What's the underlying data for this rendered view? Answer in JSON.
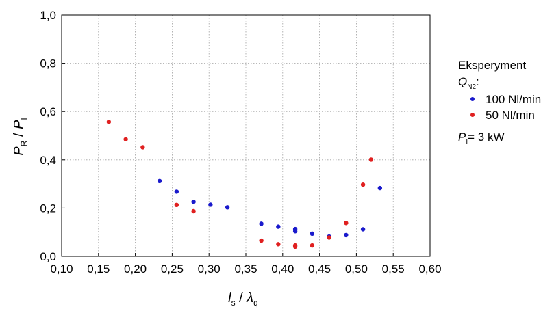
{
  "chart_data": {
    "type": "scatter",
    "x": {
      "min": 0.1,
      "max": 0.6,
      "ticks": [
        "0,10",
        "0,15",
        "0,20",
        "0,25",
        "0,30",
        "0,35",
        "0,40",
        "0,45",
        "0,50",
        "0,55",
        "0,60"
      ],
      "tick_values": [
        0.1,
        0.15,
        0.2,
        0.25,
        0.3,
        0.35,
        0.4,
        0.45,
        0.5,
        0.55,
        0.6
      ]
    },
    "y": {
      "min": 0.0,
      "max": 1.0,
      "ticks": [
        "0,0",
        "0,2",
        "0,4",
        "0,6",
        "0,8",
        "1,0"
      ],
      "tick_values": [
        0.0,
        0.2,
        0.4,
        0.6,
        0.8,
        1.0
      ]
    },
    "xlabel": {
      "main": "l",
      "sub": "s",
      "sep": " / ",
      "main2": "λ",
      "sub2": "q"
    },
    "ylabel": {
      "main": "P",
      "sub": "R",
      "sep": " / ",
      "main2": "P",
      "sub2": "I"
    },
    "grid": true,
    "legend": {
      "placement": "right",
      "title": "Eksperyment",
      "subtitle_main": "Q",
      "subtitle_sub": "N2",
      "subtitle_tail": ":"
    },
    "annotation": {
      "main": "P",
      "sub": "I",
      "tail": "= 3 kW"
    },
    "series": [
      {
        "name": "100 Nl/min",
        "color": "#1a1acc",
        "points": [
          [
            0.233,
            0.312
          ],
          [
            0.256,
            0.268
          ],
          [
            0.279,
            0.226
          ],
          [
            0.302,
            0.214
          ],
          [
            0.325,
            0.203
          ],
          [
            0.371,
            0.135
          ],
          [
            0.394,
            0.123
          ],
          [
            0.417,
            0.113
          ],
          [
            0.417,
            0.104
          ],
          [
            0.44,
            0.094
          ],
          [
            0.463,
            0.082
          ],
          [
            0.486,
            0.088
          ],
          [
            0.509,
            0.112
          ],
          [
            0.532,
            0.283
          ]
        ]
      },
      {
        "name": "50 Nl/min",
        "color": "#e02020",
        "points": [
          [
            0.164,
            0.557
          ],
          [
            0.187,
            0.485
          ],
          [
            0.21,
            0.452
          ],
          [
            0.256,
            0.213
          ],
          [
            0.279,
            0.187
          ],
          [
            0.371,
            0.065
          ],
          [
            0.394,
            0.05
          ],
          [
            0.417,
            0.04
          ],
          [
            0.417,
            0.045
          ],
          [
            0.44,
            0.045
          ],
          [
            0.463,
            0.078
          ],
          [
            0.486,
            0.138
          ],
          [
            0.509,
            0.297
          ],
          [
            0.52,
            0.401
          ]
        ]
      }
    ]
  }
}
